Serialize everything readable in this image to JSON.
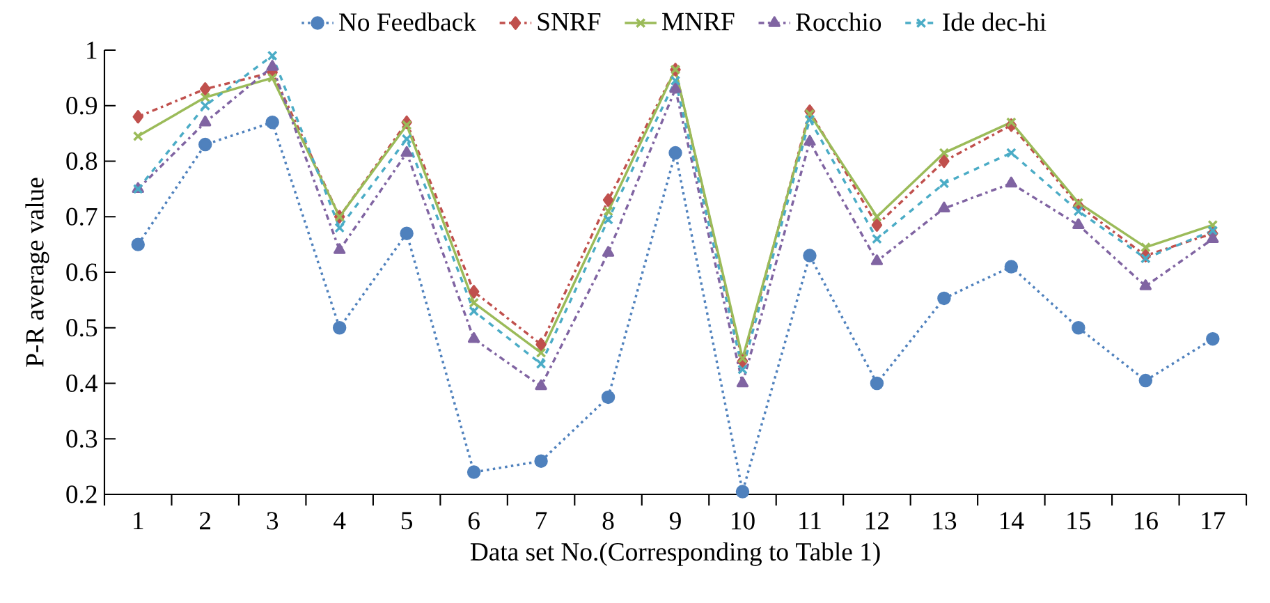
{
  "chart_data": {
    "type": "line",
    "xlabel": "Data set No.(Corresponding to Table 1)",
    "ylabel": "P-R average value",
    "categories": [
      "1",
      "2",
      "3",
      "4",
      "5",
      "6",
      "7",
      "8",
      "9",
      "10",
      "11",
      "12",
      "13",
      "14",
      "15",
      "16",
      "17"
    ],
    "ylim": [
      0.2,
      1
    ],
    "yticks": [
      {
        "value": 0.2,
        "label": "0.2"
      },
      {
        "value": 0.3,
        "label": "0.3"
      },
      {
        "value": 0.4,
        "label": "0.4"
      },
      {
        "value": 0.5,
        "label": "0.5"
      },
      {
        "value": 0.6,
        "label": "0.6"
      },
      {
        "value": 0.7,
        "label": "0.7"
      },
      {
        "value": 0.8,
        "label": "0.8"
      },
      {
        "value": 0.9,
        "label": "0.9"
      },
      {
        "value": 1,
        "label": "1"
      }
    ],
    "grid": false,
    "legend": "top",
    "series": [
      {
        "name": "No Feedback",
        "color": "#4f81bd",
        "marker": "circle",
        "line_style": "dotted",
        "values": [
          0.65,
          0.83,
          0.87,
          0.5,
          0.67,
          0.24,
          0.26,
          0.375,
          0.815,
          0.205,
          0.63,
          0.4,
          0.553,
          0.61,
          0.5,
          0.405,
          0.48
        ]
      },
      {
        "name": "SNRF",
        "color": "#c0504d",
        "marker": "diamond",
        "line_style": "dashed",
        "values": [
          0.88,
          0.93,
          0.96,
          0.7,
          0.87,
          0.565,
          0.47,
          0.73,
          0.965,
          0.44,
          0.89,
          0.685,
          0.8,
          0.865,
          0.72,
          0.63,
          0.67
        ]
      },
      {
        "name": "MNRF",
        "color": "#9bbb59",
        "marker": "cross",
        "line_style": "solid",
        "values": [
          0.845,
          0.915,
          0.95,
          0.7,
          0.865,
          0.545,
          0.455,
          0.71,
          0.965,
          0.445,
          0.885,
          0.7,
          0.815,
          0.87,
          0.725,
          0.645,
          0.685
        ]
      },
      {
        "name": "Rocchio",
        "color": "#8064a2",
        "marker": "triangle",
        "line_style": "dashed",
        "values": [
          0.75,
          0.87,
          0.97,
          0.64,
          0.815,
          0.48,
          0.395,
          0.635,
          0.93,
          0.4,
          0.835,
          0.62,
          0.715,
          0.76,
          0.685,
          0.575,
          0.66
        ]
      },
      {
        "name": "Ide dec-hi",
        "color": "#4bacc6",
        "marker": "cross",
        "line_style": "dashed",
        "values": [
          0.75,
          0.9,
          0.99,
          0.68,
          0.84,
          0.53,
          0.435,
          0.695,
          0.945,
          0.425,
          0.875,
          0.66,
          0.76,
          0.815,
          0.71,
          0.625,
          0.675
        ]
      }
    ]
  }
}
